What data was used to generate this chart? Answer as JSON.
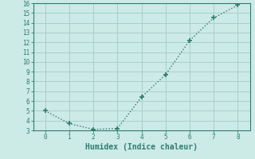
{
  "x": [
    0,
    1,
    2,
    3,
    4,
    5,
    6,
    7,
    8
  ],
  "y": [
    5.0,
    3.7,
    3.1,
    3.2,
    6.4,
    8.7,
    12.2,
    14.5,
    15.8
  ],
  "line_color": "#2e7d6e",
  "marker": "+",
  "marker_size": 4,
  "line_width": 1.0,
  "line_style": ":",
  "xlabel": "Humidex (Indice chaleur)",
  "xlabel_fontsize": 7,
  "xlim": [
    -0.5,
    8.5
  ],
  "ylim": [
    3,
    16
  ],
  "yticks": [
    3,
    4,
    5,
    6,
    7,
    8,
    9,
    10,
    11,
    12,
    13,
    14,
    15,
    16
  ],
  "xticks": [
    0,
    1,
    2,
    3,
    4,
    5,
    6,
    7,
    8
  ],
  "background_color": "#cceae6",
  "grid_color": "#aacfcc",
  "tick_color": "#2e7d6e",
  "axis_color": "#2e7d6e",
  "tick_fontsize": 5.5
}
